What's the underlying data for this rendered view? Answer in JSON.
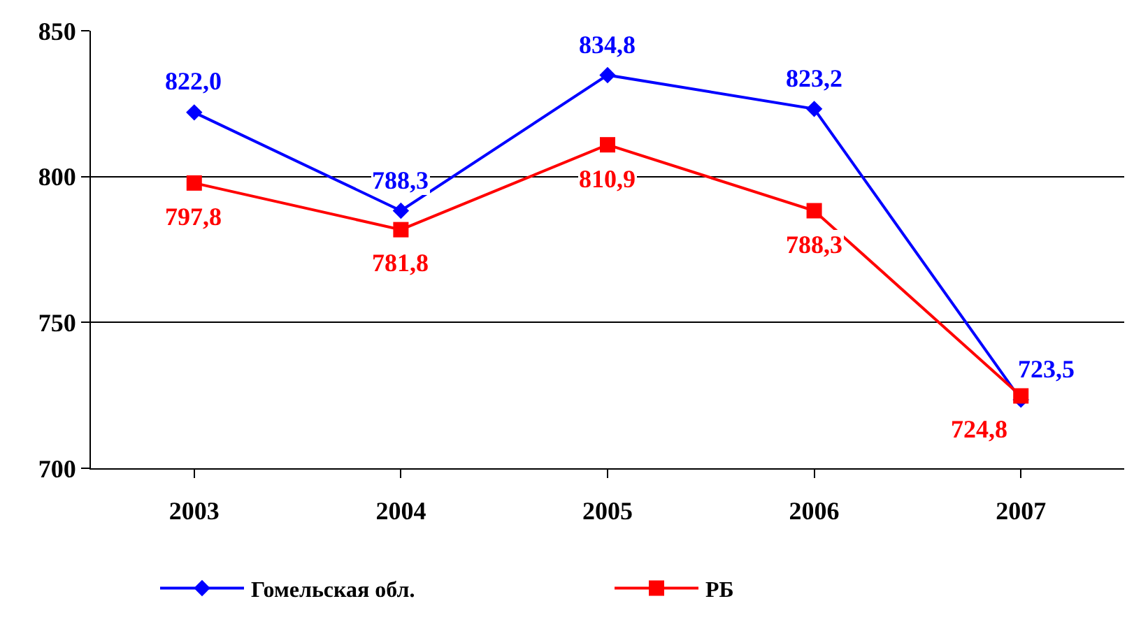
{
  "chart_data": {
    "type": "line",
    "categories": [
      "2003",
      "2004",
      "2005",
      "2006",
      "2007"
    ],
    "series": [
      {
        "name": "Гомельская обл.",
        "color": "#0000ff",
        "marker": "diamond",
        "values": [
          822.0,
          788.3,
          834.8,
          823.2,
          723.5
        ],
        "value_labels": [
          "822,0",
          "788,3",
          "834,8",
          "823,2",
          "723,5"
        ]
      },
      {
        "name": "РБ",
        "color": "#ff0000",
        "marker": "square",
        "values": [
          797.8,
          781.8,
          810.9,
          788.3,
          724.8
        ],
        "value_labels": [
          "797,8",
          "781,8",
          "810,9",
          "788,3",
          "724,8"
        ]
      }
    ],
    "ylim": [
      700,
      850
    ],
    "yticks": [
      700,
      750,
      800,
      850
    ],
    "grid": "y",
    "legend": "bottom"
  }
}
